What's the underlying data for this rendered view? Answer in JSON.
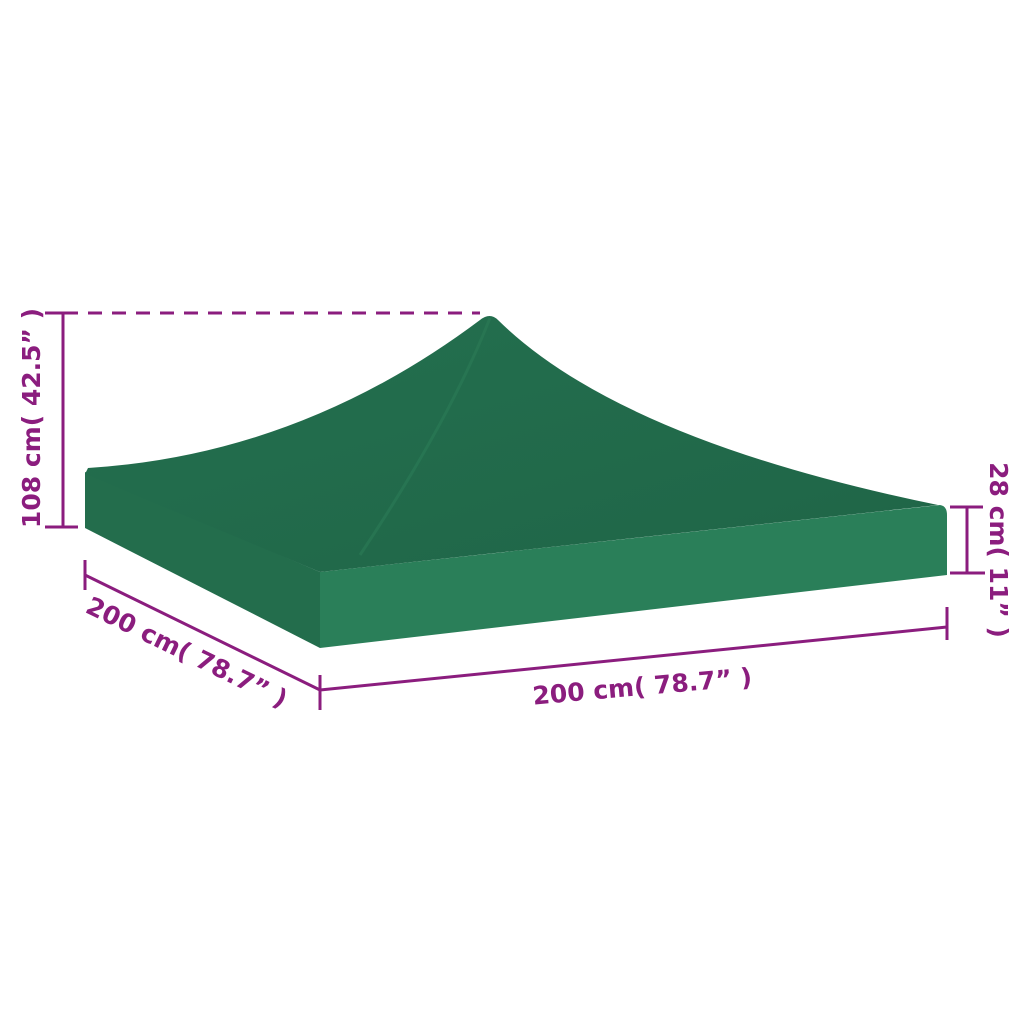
{
  "colors": {
    "canopy_top": "#21694a",
    "canopy_side": "#2a7f59",
    "dimension": "#8b1d7e"
  },
  "dimensions": {
    "height": "108 cm( 42.5” )",
    "side_height": "28 cm( 11” )",
    "depth": "200 cm( 78.7” )",
    "width": "200 cm( 78.7” )"
  }
}
